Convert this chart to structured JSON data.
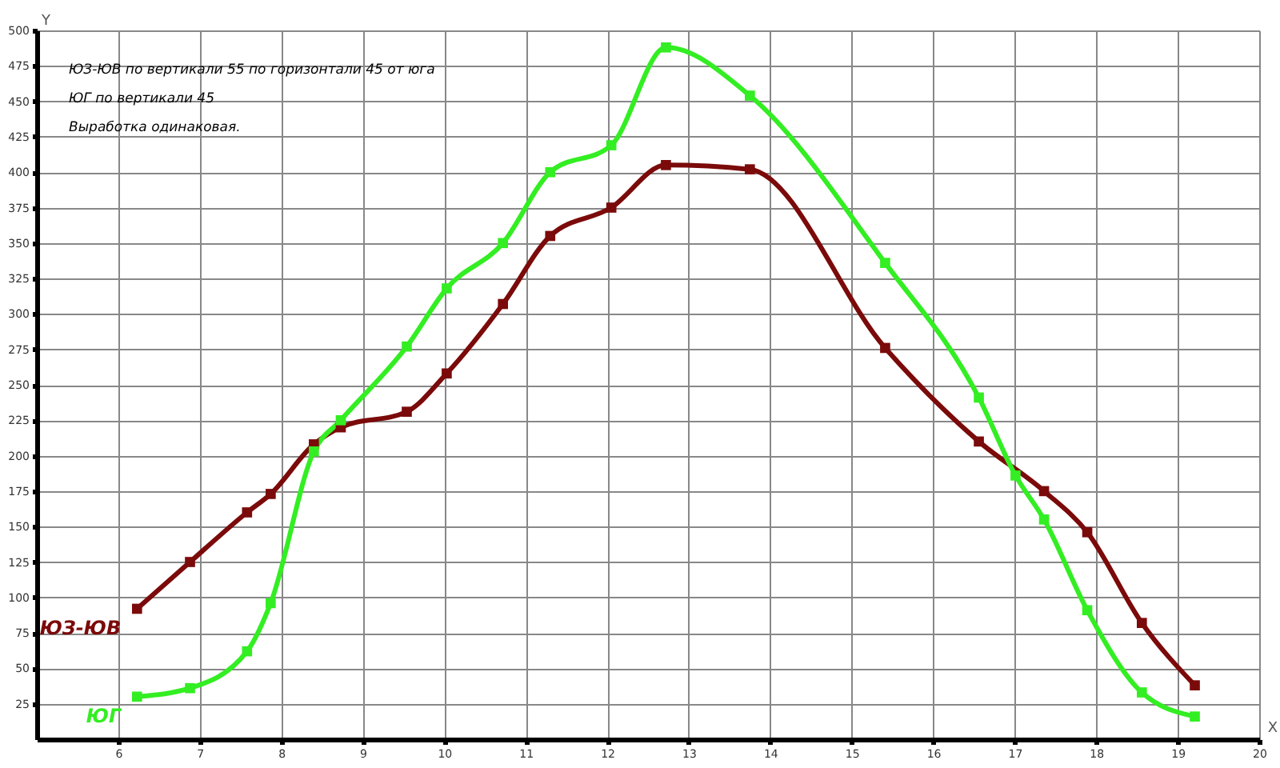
{
  "chart_data": {
    "type": "line",
    "xlabel": "X",
    "ylabel": "Y",
    "annotations": [
      "ЮЗ-ЮВ по вертикали 55 по горизонтали 45 от юга",
      "ЮГ        по вертикали 45",
      "Выработка одинаковая."
    ],
    "x": [
      6.23,
      6.88,
      7.58,
      7.87,
      8.4,
      8.73,
      9.54,
      10.03,
      10.72,
      11.3,
      12.05,
      12.72,
      13.75,
      15.41,
      16.56,
      17.01,
      17.36,
      17.89,
      18.56,
      19.21
    ],
    "series": [
      {
        "name": "ЮЗ-ЮВ",
        "color": "#7b0a0a",
        "x": [
          6.23,
          6.88,
          7.58,
          7.87,
          8.4,
          8.73,
          9.54,
          10.03,
          10.72,
          11.3,
          12.05,
          12.72,
          13.75,
          15.41,
          16.56,
          17.36,
          17.89,
          18.56,
          19.21
        ],
        "values": [
          92,
          125,
          160,
          173,
          208,
          220,
          231,
          258,
          307,
          355,
          375,
          405,
          402,
          276,
          210,
          175,
          146,
          82,
          38
        ]
      },
      {
        "name": "ЮГ",
        "color": "#33ee22",
        "values": [
          30,
          36,
          62,
          96,
          203,
          225,
          277,
          318,
          350,
          400,
          419,
          488,
          454,
          336,
          241,
          186,
          155,
          91,
          33,
          16
        ]
      }
    ],
    "xlim": [
      5,
      20
    ],
    "xticks": [
      6,
      7,
      8,
      9,
      10,
      11,
      12,
      13,
      14,
      15,
      16,
      17,
      18,
      19,
      20
    ],
    "ylim": [
      0,
      500
    ],
    "yticks": [
      25,
      50,
      75,
      100,
      125,
      150,
      175,
      200,
      225,
      250,
      275,
      300,
      325,
      350,
      375,
      400,
      425,
      450,
      475,
      500
    ],
    "grid": true,
    "legend": false,
    "marker": "square",
    "line_style": "solid"
  }
}
